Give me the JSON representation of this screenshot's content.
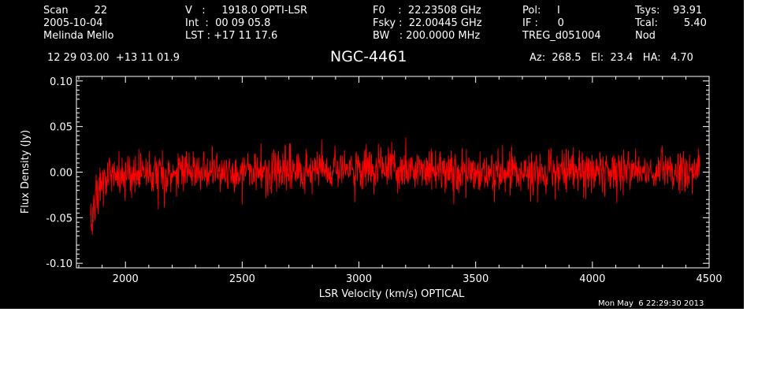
{
  "header": {
    "col1": [
      "Scan        22",
      "2005-10-04",
      "Melinda Mello"
    ],
    "col2": [
      "V   :     1918.0 OPTI-LSR",
      "Int  :  00 09 05.8",
      "LST : +17 11 17.6"
    ],
    "col3": [
      "F0    :  22.23508 GHz",
      "Fsky :  22.00445 GHz",
      "BW   : 200.0000 MHz"
    ],
    "col4": [
      "Pol:     I",
      "IF :      0",
      "TREG_d051004"
    ],
    "col5": [
      "Tsys:    93.91",
      "Tcal:        5.40",
      "Nod"
    ],
    "coords": "12 29 03.00  +13 11 01.9",
    "source": "NGC-4461",
    "pointing": "Az:  268.5   El:  23.4   HA:   4.70"
  },
  "timestamp": "Mon May  6 22:29:30 2013",
  "colors": {
    "background": "#000000",
    "axes": "#ffffff",
    "trace": "#ff0000"
  },
  "chart_data": {
    "type": "line",
    "title": "NGC-4461",
    "xlabel": "LSR Velocity (km/s) OPTICAL",
    "ylabel": "Flux Density (Jy)",
    "xlim": [
      1790,
      4500
    ],
    "ylim": [
      -0.105,
      0.105
    ],
    "xticks": [
      2000,
      2500,
      3000,
      3500,
      4000,
      4500
    ],
    "xtick_labels": [
      "2000",
      "2500",
      "3000",
      "3500",
      "4000",
      "4500"
    ],
    "yticks": [
      -0.1,
      -0.05,
      0.0,
      0.05,
      0.1
    ],
    "ytick_labels": [
      "-0.10",
      "-0.05",
      "0.00",
      "0.05",
      "0.10"
    ],
    "grid": false,
    "series": [
      {
        "color": "#ff0000",
        "noise_rms_jy": 0.012,
        "x": [
          1850,
          1856,
          1862,
          1868,
          1875,
          1882,
          1890,
          1898,
          1906,
          1915,
          1925,
          1935,
          1945,
          1960,
          1980,
          2000,
          2050,
          2100,
          2150,
          2200,
          2250,
          2300,
          2350,
          2400,
          2450,
          2500,
          2550,
          2600,
          2650,
          2700,
          2750,
          2800,
          2850,
          2900,
          2950,
          3000,
          3050,
          3100,
          3150,
          3200,
          3250,
          3300,
          3350,
          3400,
          3450,
          3500,
          3550,
          3600,
          3650,
          3700,
          3750,
          3800,
          3850,
          3900,
          3950,
          4000,
          4050,
          4100,
          4150,
          4200,
          4250,
          4300,
          4350,
          4400,
          4450,
          4460
        ],
        "y": [
          -0.045,
          -0.065,
          -0.03,
          -0.05,
          -0.02,
          -0.03,
          -0.01,
          -0.015,
          -0.005,
          -0.008,
          0.0,
          -0.005,
          0.0,
          -0.003,
          0.002,
          0.0,
          0.001,
          -0.001,
          0.0,
          0.002,
          0.001,
          -0.001,
          0.0,
          0.001,
          -0.002,
          -0.001,
          0.0,
          -0.001,
          0.0,
          0.001,
          0.0,
          0.001,
          0.002,
          0.003,
          0.004,
          0.005,
          0.004,
          0.003,
          0.002,
          0.002,
          0.001,
          0.002,
          0.003,
          0.002,
          0.001,
          0.0,
          -0.001,
          0.0,
          0.001,
          0.0,
          -0.001,
          0.0,
          0.001,
          0.0,
          0.001,
          0.0,
          -0.001,
          0.0,
          0.001,
          0.0,
          0.002,
          0.003,
          0.001,
          0.0,
          0.001,
          0.0
        ]
      }
    ]
  }
}
